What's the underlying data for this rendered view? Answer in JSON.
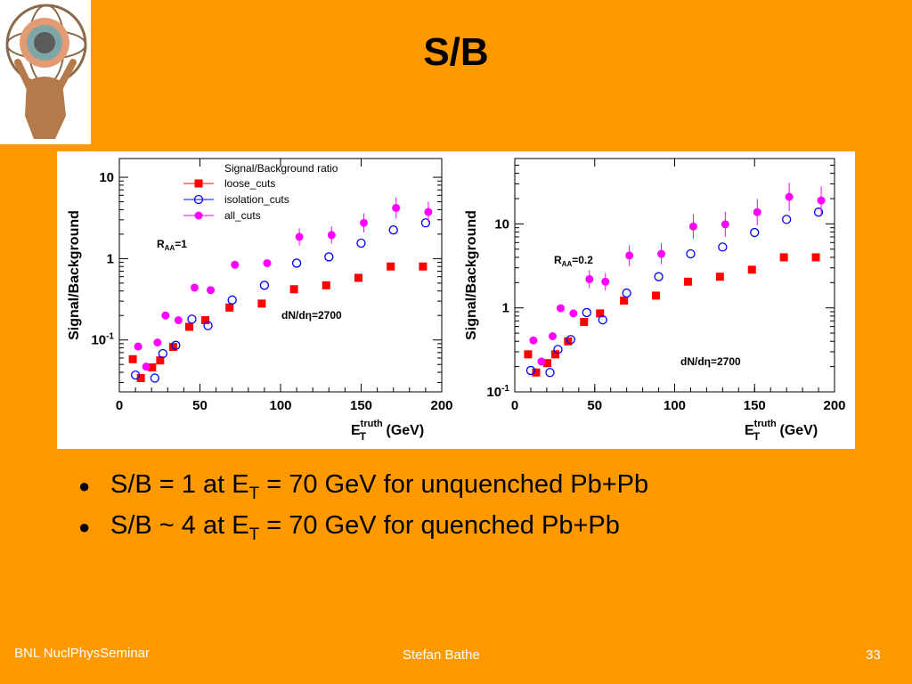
{
  "slide": {
    "title": "S/B",
    "bullets": [
      {
        "pre": "S/B = 1 at E",
        "sub": "T",
        "post": " = 70 GeV for unquenched Pb+Pb"
      },
      {
        "pre": "S/B ~ 4 at E",
        "sub": "T",
        "post": " = 70 GeV for quenched Pb+Pb"
      }
    ],
    "footer": {
      "left": "BNL NuclPhysSeminar",
      "center": "Stefan Bathe",
      "right": "33"
    }
  },
  "colors": {
    "background": "#FF9900",
    "loose": "#FF0000",
    "isolation": "#0000FF",
    "all": "#FF00FF"
  },
  "icons": {
    "logo": "atlas-logo-icon"
  },
  "chart_data": [
    {
      "type": "scatter",
      "scale": "log",
      "legend_title": "Signal/Background ratio",
      "legend_position": "top-center",
      "ylabel": "Signal/Background",
      "xlabel_main": "E",
      "xlabel_sub": "T",
      "xlabel_sup": "truth",
      "xlabel_unit": " (GeV)",
      "annotation_raa_main": "R",
      "annotation_raa_sub": "AA",
      "annotation_raa_value": "=1",
      "annotation_dndeta": "dN/dη=2700",
      "xlim": [
        0,
        200
      ],
      "ylim": [
        0.023,
        17
      ],
      "x_ticks": [
        "0",
        "50",
        "100",
        "150",
        "200"
      ],
      "y_ticks": [
        {
          "v": 0.1,
          "b": "10",
          "s": "-1"
        },
        {
          "v": 1,
          "b": "1",
          "s": ""
        },
        {
          "v": 10,
          "b": "10",
          "s": ""
        }
      ],
      "x": [
        10,
        15,
        22,
        27,
        35,
        45,
        55,
        70,
        90,
        110,
        130,
        150,
        170,
        190
      ],
      "series": [
        {
          "name": "loose_cuts",
          "marker": "square",
          "color": "#FF0000",
          "values": [
            0.058,
            0.034,
            0.046,
            0.056,
            0.082,
            0.145,
            0.175,
            0.25,
            0.28,
            0.42,
            0.47,
            0.58,
            0.8,
            0.8
          ]
        },
        {
          "name": "isolation_cuts",
          "marker": "open-circle",
          "color": "#0000FF",
          "values": [
            0.037,
            null,
            0.034,
            0.068,
            0.086,
            0.18,
            0.15,
            0.31,
            0.47,
            0.88,
            1.05,
            1.55,
            2.25,
            2.75
          ]
        },
        {
          "name": "all_cuts",
          "marker": "filled-circle",
          "color": "#FF00FF",
          "values": [
            0.083,
            0.047,
            0.093,
            0.2,
            0.175,
            0.44,
            0.41,
            0.84,
            0.88,
            1.85,
            1.95,
            2.75,
            4.2,
            3.75
          ]
        }
      ]
    },
    {
      "type": "scatter",
      "scale": "log",
      "ylabel": "Signal/Background",
      "xlabel_main": "E",
      "xlabel_sub": "T",
      "xlabel_sup": "truth",
      "xlabel_unit": " (GeV)",
      "annotation_raa_main": "R",
      "annotation_raa_sub": "AA",
      "annotation_raa_value": "=0.2",
      "annotation_dndeta": "dN/dη=2700",
      "xlim": [
        0,
        200
      ],
      "ylim": [
        0.1,
        60
      ],
      "x_ticks": [
        "0",
        "50",
        "100",
        "150",
        "200"
      ],
      "y_ticks": [
        {
          "v": 0.1,
          "b": "10",
          "s": "-1"
        },
        {
          "v": 1,
          "b": "1",
          "s": ""
        },
        {
          "v": 10,
          "b": "10",
          "s": ""
        }
      ],
      "x": [
        10,
        15,
        22,
        27,
        35,
        45,
        55,
        70,
        90,
        110,
        130,
        150,
        170,
        190
      ],
      "series": [
        {
          "name": "loose_cuts",
          "marker": "square",
          "color": "#FF0000",
          "values": [
            0.28,
            0.17,
            0.22,
            0.28,
            0.4,
            0.68,
            0.86,
            1.22,
            1.4,
            2.05,
            2.35,
            2.85,
            4.0,
            4.0
          ]
        },
        {
          "name": "isolation_cuts",
          "marker": "open-circle",
          "color": "#0000FF",
          "values": [
            0.18,
            null,
            0.17,
            0.32,
            0.42,
            0.88,
            0.72,
            1.5,
            2.35,
            4.4,
            5.3,
            7.9,
            11.3,
            13.8
          ]
        },
        {
          "name": "all_cuts",
          "marker": "filled-circle",
          "color": "#FF00FF",
          "values": [
            0.41,
            0.23,
            0.46,
            0.99,
            0.86,
            2.2,
            2.05,
            4.2,
            4.4,
            9.3,
            9.9,
            13.8,
            21,
            19
          ]
        }
      ]
    }
  ]
}
